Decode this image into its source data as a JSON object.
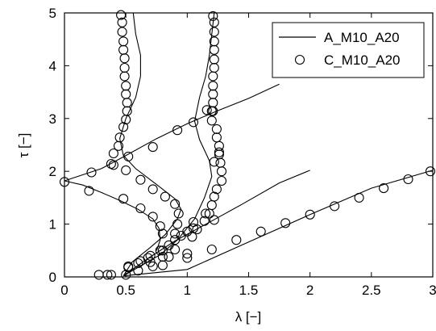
{
  "chart_data": {
    "type": "line",
    "xlabel": "λ [−]",
    "ylabel": "τ [−]",
    "xlim": [
      0,
      3
    ],
    "ylim": [
      0,
      5
    ],
    "xticks": [
      "0",
      "0.5",
      "1",
      "1.5",
      "2",
      "2.5",
      "3"
    ],
    "yticks": [
      "0",
      "1",
      "2",
      "3",
      "4",
      "5"
    ],
    "grid": false,
    "legend_position": "top-right",
    "series": [
      {
        "name": "A_M10_A20",
        "style": "line",
        "color": "#000000",
        "segments": [
          [
            [
              0.48,
              0.02
            ],
            [
              0.7,
              0.38
            ],
            [
              0.9,
              0.68
            ],
            [
              1.2,
              1.06
            ],
            [
              1.45,
              1.38
            ],
            [
              1.75,
              1.78
            ],
            [
              2.0,
              2.02
            ]
          ],
          [
            [
              0.48,
              0.02
            ],
            [
              1.0,
              0.14
            ],
            [
              1.5,
              0.66
            ],
            [
              2.0,
              1.18
            ],
            [
              2.5,
              1.68
            ],
            [
              3.0,
              2.02
            ]
          ],
          [
            [
              0.0,
              1.82
            ],
            [
              0.15,
              1.74
            ],
            [
              0.3,
              1.6
            ],
            [
              0.45,
              1.45
            ],
            [
              0.6,
              1.28
            ],
            [
              0.72,
              1.1
            ],
            [
              0.77,
              0.92
            ],
            [
              0.78,
              0.7
            ],
            [
              0.75,
              0.5
            ]
          ],
          [
            [
              0.0,
              1.82
            ],
            [
              0.3,
              2.05
            ],
            [
              0.5,
              2.3
            ],
            [
              0.75,
              2.62
            ],
            [
              1.0,
              2.9
            ],
            [
              1.25,
              3.15
            ],
            [
              1.5,
              3.38
            ],
            [
              1.75,
              3.65
            ]
          ],
          [
            [
              0.56,
              5.0
            ],
            [
              0.58,
              4.6
            ],
            [
              0.62,
              4.2
            ],
            [
              0.62,
              3.8
            ],
            [
              0.58,
              3.4
            ],
            [
              0.5,
              3.0
            ],
            [
              0.45,
              2.62
            ],
            [
              0.48,
              2.3
            ],
            [
              0.58,
              2.05
            ],
            [
              0.75,
              1.75
            ],
            [
              0.9,
              1.48
            ],
            [
              0.95,
              1.28
            ],
            [
              0.92,
              1.1
            ],
            [
              0.82,
              0.8
            ],
            [
              0.7,
              0.56
            ],
            [
              0.55,
              0.28
            ],
            [
              0.48,
              0.02
            ]
          ],
          [
            [
              1.22,
              5.0
            ],
            [
              1.2,
              4.6
            ],
            [
              1.18,
              4.2
            ],
            [
              1.15,
              3.8
            ],
            [
              1.1,
              3.4
            ],
            [
              1.06,
              2.95
            ],
            [
              1.1,
              2.6
            ],
            [
              1.18,
              2.2
            ],
            [
              1.2,
              1.9
            ],
            [
              1.14,
              1.5
            ],
            [
              1.06,
              1.1
            ],
            [
              0.92,
              0.7
            ],
            [
              0.78,
              0.42
            ],
            [
              0.6,
              0.18
            ],
            [
              0.48,
              0.02
            ]
          ]
        ]
      },
      {
        "name": "C_M10_A20",
        "style": "marker",
        "marker": "open-circle",
        "color": "#000000",
        "points": [
          [
            0.28,
            0.04
          ],
          [
            0.35,
            0.04
          ],
          [
            0.38,
            0.04
          ],
          [
            0.52,
            0.18
          ],
          [
            0.62,
            0.3
          ],
          [
            0.7,
            0.4
          ],
          [
            0.78,
            0.5
          ],
          [
            0.85,
            0.6
          ],
          [
            0.95,
            0.78
          ],
          [
            1.05,
            0.92
          ],
          [
            1.22,
            1.08
          ],
          [
            0.52,
            0.2
          ],
          [
            0.68,
            0.36
          ],
          [
            0.8,
            0.5
          ],
          [
            0.9,
            0.7
          ],
          [
            1.0,
            0.86
          ],
          [
            1.05,
            1.04
          ],
          [
            1.15,
            1.2
          ],
          [
            0.6,
            0.26
          ],
          [
            0.7,
            0.28
          ],
          [
            0.8,
            0.38
          ],
          [
            0.9,
            0.52
          ],
          [
            0.72,
            0.2
          ],
          [
            0.85,
            0.38
          ],
          [
            1.0,
            0.44
          ],
          [
            0.5,
            0.04
          ],
          [
            0.6,
            0.12
          ],
          [
            0.8,
            0.22
          ],
          [
            1.0,
            0.36
          ],
          [
            1.2,
            0.52
          ],
          [
            1.4,
            0.7
          ],
          [
            1.6,
            0.86
          ],
          [
            1.8,
            1.02
          ],
          [
            2.0,
            1.18
          ],
          [
            2.2,
            1.34
          ],
          [
            2.4,
            1.5
          ],
          [
            2.6,
            1.68
          ],
          [
            2.8,
            1.85
          ],
          [
            2.98,
            2.0
          ],
          [
            0.0,
            1.8
          ],
          [
            0.2,
            1.63
          ],
          [
            0.48,
            1.48
          ],
          [
            0.62,
            1.3
          ],
          [
            0.72,
            1.14
          ],
          [
            0.78,
            0.96
          ],
          [
            0.8,
            0.82
          ],
          [
            0.22,
            1.98
          ],
          [
            0.4,
            2.12
          ],
          [
            0.52,
            2.28
          ],
          [
            0.72,
            2.46
          ],
          [
            0.92,
            2.78
          ],
          [
            1.05,
            2.93
          ],
          [
            1.2,
            3.14
          ],
          [
            0.46,
            4.96
          ],
          [
            0.47,
            4.82
          ],
          [
            0.47,
            4.64
          ],
          [
            0.48,
            4.46
          ],
          [
            0.48,
            4.3
          ],
          [
            0.49,
            4.14
          ],
          [
            0.49,
            3.96
          ],
          [
            0.49,
            3.8
          ],
          [
            0.5,
            3.62
          ],
          [
            0.5,
            3.46
          ],
          [
            0.51,
            3.3
          ],
          [
            0.51,
            3.14
          ],
          [
            0.5,
            2.98
          ],
          [
            0.48,
            2.84
          ],
          [
            0.45,
            2.64
          ],
          [
            0.44,
            2.48
          ],
          [
            0.4,
            2.34
          ],
          [
            0.38,
            2.14
          ],
          [
            0.5,
            2.02
          ],
          [
            0.62,
            1.84
          ],
          [
            0.72,
            1.66
          ],
          [
            0.82,
            1.52
          ],
          [
            0.9,
            1.38
          ],
          [
            0.93,
            1.2
          ],
          [
            0.92,
            1.0
          ],
          [
            0.9,
            0.82
          ],
          [
            1.21,
            4.94
          ],
          [
            1.22,
            4.82
          ],
          [
            1.22,
            4.64
          ],
          [
            1.22,
            4.46
          ],
          [
            1.22,
            4.3
          ],
          [
            1.22,
            4.12
          ],
          [
            1.22,
            3.96
          ],
          [
            1.21,
            3.8
          ],
          [
            1.21,
            3.62
          ],
          [
            1.21,
            3.46
          ],
          [
            1.21,
            3.3
          ],
          [
            1.21,
            3.14
          ],
          [
            1.16,
            3.16
          ],
          [
            1.2,
            2.96
          ],
          [
            1.24,
            2.8
          ],
          [
            1.24,
            2.64
          ],
          [
            1.26,
            2.48
          ],
          [
            1.26,
            2.32
          ],
          [
            1.27,
            2.16
          ],
          [
            1.28,
            2.0
          ],
          [
            1.28,
            1.82
          ],
          [
            1.24,
            1.66
          ],
          [
            1.22,
            1.52
          ],
          [
            1.2,
            1.36
          ],
          [
            1.18,
            1.2
          ],
          [
            1.14,
            1.06
          ],
          [
            1.08,
            0.9
          ],
          [
            1.04,
            0.76
          ],
          [
            1.22,
            2.18
          ],
          [
            1.26,
            2.36
          ]
        ]
      }
    ]
  }
}
